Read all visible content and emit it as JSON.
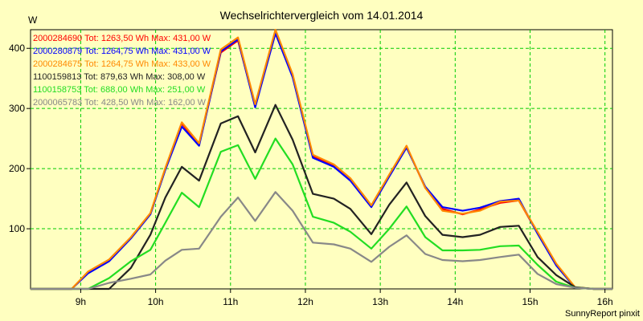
{
  "chart_data": {
    "type": "line",
    "title": "Wechselrichtervergleich vom 14.01.2014",
    "ylabel": "W",
    "ylim": [
      0,
      431
    ],
    "yticks": [
      100,
      200,
      300,
      400
    ],
    "xlim": [
      8.33,
      16.1
    ],
    "xticks": [
      {
        "value": 9,
        "label": "9h"
      },
      {
        "value": 10,
        "label": "10h"
      },
      {
        "value": 11,
        "label": "11h"
      },
      {
        "value": 12,
        "label": "12h"
      },
      {
        "value": 13,
        "label": "13h"
      },
      {
        "value": 14,
        "label": "14h"
      },
      {
        "value": 15,
        "label": "15h"
      },
      {
        "value": 16,
        "label": "16h"
      }
    ],
    "grid": true,
    "legend_position": "top-left",
    "credit": "SunnyReport pinxit",
    "x": [
      8.33,
      8.67,
      8.88,
      9.1,
      9.38,
      9.67,
      9.93,
      10.13,
      10.35,
      10.58,
      10.87,
      11.1,
      11.33,
      11.6,
      11.83,
      12.1,
      12.38,
      12.6,
      12.88,
      13.12,
      13.35,
      13.6,
      13.83,
      14.1,
      14.33,
      14.6,
      14.85,
      15.1,
      15.35,
      15.6,
      15.85,
      16.1
    ],
    "series": [
      {
        "label": "2000284690 Tot: 1263,50 Wh Max: 431,00 W",
        "color": "#ff0000",
        "values": [
          0,
          0,
          0,
          28,
          48,
          85,
          125,
          200,
          275,
          240,
          393,
          413,
          305,
          425,
          355,
          220,
          205,
          182,
          138,
          188,
          237,
          168,
          133,
          124,
          132,
          143,
          147,
          93,
          40,
          2,
          0,
          0
        ]
      },
      {
        "label": "2000280879 Tot: 1264,75 Wh Max: 431,00 W",
        "color": "#0000ff",
        "values": [
          0,
          0,
          0,
          26,
          46,
          84,
          124,
          198,
          270,
          238,
          395,
          415,
          302,
          425,
          352,
          218,
          203,
          180,
          136,
          187,
          235,
          170,
          136,
          130,
          135,
          146,
          150,
          92,
          39,
          2,
          0,
          0
        ]
      },
      {
        "label": "2000284675 Tot: 1264,75 Wh Max: 433,00 W",
        "color": "#ff8800",
        "values": [
          0,
          0,
          0,
          29,
          49,
          86,
          126,
          201,
          277,
          242,
          398,
          418,
          307,
          431,
          357,
          223,
          207,
          184,
          139,
          190,
          238,
          168,
          130,
          125,
          130,
          145,
          147,
          95,
          42,
          3,
          0,
          0
        ]
      },
      {
        "label": "1100159813 Tot: 879,63 Wh Max: 308,00 W",
        "color": "#222222",
        "values": [
          0,
          0,
          0,
          0,
          0,
          35,
          90,
          152,
          203,
          180,
          275,
          287,
          227,
          306,
          248,
          158,
          150,
          133,
          91,
          140,
          177,
          121,
          90,
          86,
          90,
          103,
          105,
          53,
          23,
          3,
          0,
          0
        ]
      },
      {
        "label": "1100158753 Tot: 688,00 Wh Max: 251,00 W",
        "color": "#22dd22",
        "values": [
          0,
          0,
          0,
          0,
          18,
          46,
          65,
          110,
          160,
          136,
          228,
          239,
          183,
          250,
          207,
          120,
          110,
          95,
          67,
          100,
          137,
          86,
          64,
          64,
          65,
          71,
          72,
          40,
          12,
          2,
          0,
          0
        ]
      },
      {
        "label": "2000065783 Tot: 428,50 Wh Max: 162,00 W",
        "color": "#888888",
        "values": [
          0,
          0,
          0,
          0,
          10,
          17,
          24,
          47,
          65,
          67,
          120,
          152,
          113,
          161,
          130,
          77,
          74,
          67,
          45,
          70,
          89,
          58,
          48,
          46,
          48,
          53,
          57,
          25,
          8,
          2,
          0,
          0
        ]
      }
    ]
  }
}
